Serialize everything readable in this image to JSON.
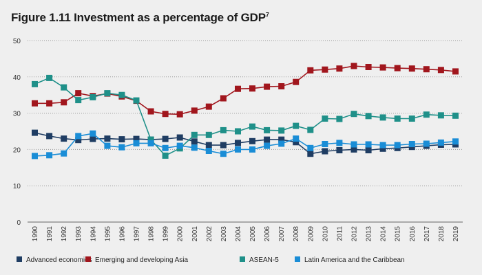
{
  "title": "Figure 1.11 Investment as a percentage of GDP",
  "title_footnote": "7",
  "chart_data": {
    "type": "line",
    "title": "Figure 1.11 Investment as a percentage of GDP",
    "xlabel": "",
    "ylabel": "",
    "ylim": [
      0,
      50
    ],
    "yticks": [
      0,
      10,
      20,
      30,
      40,
      50
    ],
    "x": [
      "1990",
      "1991",
      "1992",
      "1993",
      "1994",
      "1995",
      "1996",
      "1997",
      "1998",
      "1999",
      "2000",
      "2001",
      "2002",
      "2003",
      "2004",
      "2005",
      "2006",
      "2007",
      "2008",
      "2009",
      "2010",
      "2011",
      "2012",
      "2013",
      "2014",
      "2015",
      "2016",
      "2017",
      "2018",
      "2019"
    ],
    "grid": "horizontal-dotted",
    "legend_position": "bottom",
    "series": [
      {
        "name": "Advanced economies",
        "color": "#1f3d63",
        "values": [
          24.6,
          23.7,
          23.0,
          22.6,
          22.9,
          23.0,
          22.8,
          22.9,
          22.7,
          22.9,
          23.3,
          22.2,
          21.2,
          21.2,
          21.8,
          22.3,
          22.7,
          22.7,
          22.0,
          18.8,
          19.5,
          19.8,
          20.0,
          19.8,
          20.2,
          20.4,
          20.7,
          21.0,
          21.3,
          21.4
        ]
      },
      {
        "name": "Emerging and developing Asia",
        "color": "#a1161d",
        "values": [
          32.7,
          32.7,
          33.0,
          35.5,
          34.7,
          35.4,
          34.6,
          33.4,
          30.5,
          29.8,
          29.7,
          30.7,
          31.8,
          34.1,
          36.7,
          36.8,
          37.3,
          37.4,
          38.6,
          41.8,
          42.0,
          42.3,
          43.0,
          42.7,
          42.6,
          42.4,
          42.3,
          42.1,
          41.9,
          41.5
        ]
      },
      {
        "name": "ASEAN-5",
        "color": "#1f9089",
        "values": [
          38.0,
          39.7,
          37.1,
          33.6,
          34.4,
          35.5,
          35.0,
          33.5,
          22.7,
          18.3,
          20.3,
          24.0,
          24.0,
          25.3,
          25.0,
          26.3,
          25.3,
          25.2,
          26.5,
          25.4,
          28.5,
          28.4,
          29.8,
          29.2,
          28.8,
          28.5,
          28.5,
          29.6,
          29.4,
          29.3
        ]
      },
      {
        "name": "Latin America and the Caribbean",
        "color": "#1a8dd6",
        "values": [
          18.2,
          18.4,
          18.9,
          23.7,
          24.4,
          21.0,
          20.6,
          21.7,
          21.7,
          20.4,
          21.0,
          20.5,
          19.6,
          18.8,
          20.0,
          20.0,
          21.0,
          21.6,
          23.0,
          20.4,
          21.5,
          21.8,
          21.4,
          21.4,
          21.2,
          21.2,
          21.5,
          21.6,
          21.9,
          22.2
        ]
      }
    ]
  }
}
